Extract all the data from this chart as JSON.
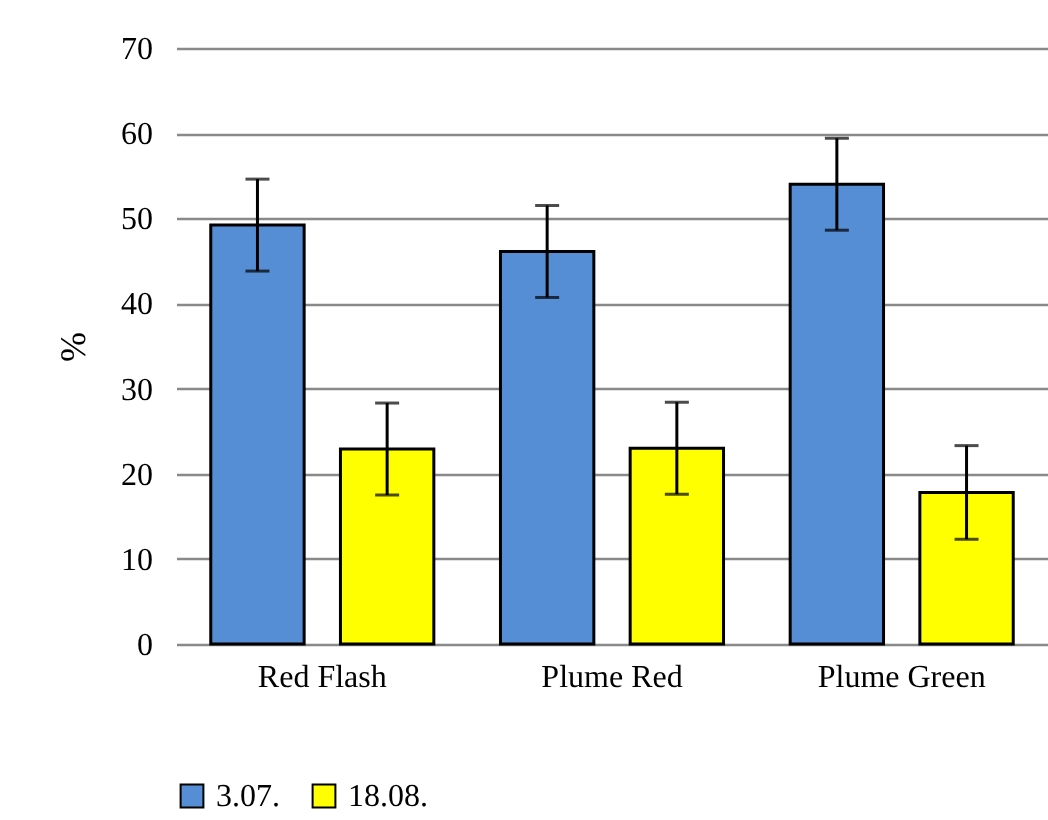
{
  "chart_data": {
    "type": "bar",
    "ylabel": "%",
    "categories": [
      "Red Flash",
      "Plume Red",
      "Plume Green"
    ],
    "series": [
      {
        "name": "3.07.",
        "color": "#558ed5",
        "values": [
          49.2,
          46.1,
          54.0
        ],
        "errors": [
          5.4,
          5.4,
          5.4
        ]
      },
      {
        "name": "18.08.",
        "color": "#ffff00",
        "values": [
          22.9,
          23.0,
          17.8
        ],
        "errors": [
          5.4,
          5.4,
          5.5
        ]
      }
    ],
    "ylim": [
      0,
      70
    ],
    "yticks": [
      0,
      10,
      20,
      30,
      40,
      50,
      60,
      70
    ],
    "grid": "y",
    "legend": "bottom"
  }
}
